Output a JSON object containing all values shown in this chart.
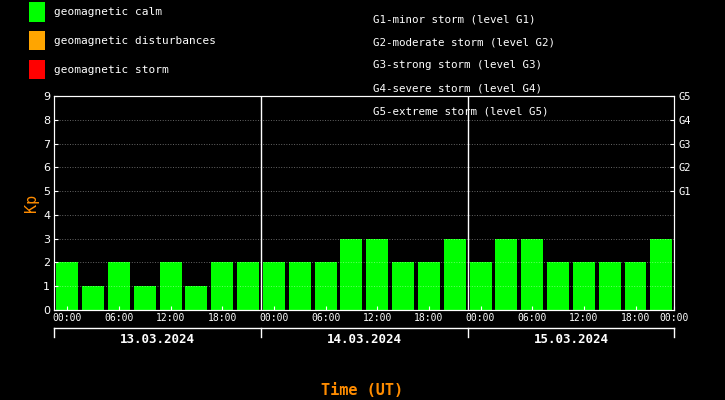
{
  "background_color": "#000000",
  "plot_bg_color": "#000000",
  "bar_color_calm": "#00ff00",
  "bar_color_disturbance": "#ffa500",
  "bar_color_storm": "#ff0000",
  "text_color": "#ffffff",
  "axis_color": "#ffffff",
  "grid_color": "#ffffff",
  "kp_label_color": "#ff8c00",
  "xlabel_color": "#ff8c00",
  "days": [
    "13.03.2024",
    "14.03.2024",
    "15.03.2024"
  ],
  "kp_values": [
    2,
    1,
    2,
    1,
    2,
    1,
    2,
    2,
    2,
    2,
    2,
    3,
    3,
    2,
    2,
    3,
    2,
    3,
    3,
    2,
    2,
    2,
    2,
    3
  ],
  "ylim": [
    0,
    9
  ],
  "yticks": [
    0,
    1,
    2,
    3,
    4,
    5,
    6,
    7,
    8,
    9
  ],
  "right_labels": [
    [
      "G5",
      9
    ],
    [
      "G4",
      8
    ],
    [
      "G3",
      7
    ],
    [
      "G2",
      6
    ],
    [
      "G1",
      5
    ]
  ],
  "legend_items": [
    {
      "label": "geomagnetic calm",
      "color": "#00ff00"
    },
    {
      "label": "geomagnetic disturbances",
      "color": "#ffa500"
    },
    {
      "label": "geomagnetic storm",
      "color": "#ff0000"
    }
  ],
  "right_legend_lines": [
    "G1-minor storm (level G1)",
    "G2-moderate storm (level G2)",
    "G3-strong storm (level G3)",
    "G4-severe storm (level G4)",
    "G5-extreme storm (level G5)"
  ],
  "kp_ylabel": "Kp",
  "xlabel": "Time (UT)",
  "font_family": "monospace",
  "bar_width": 0.85
}
